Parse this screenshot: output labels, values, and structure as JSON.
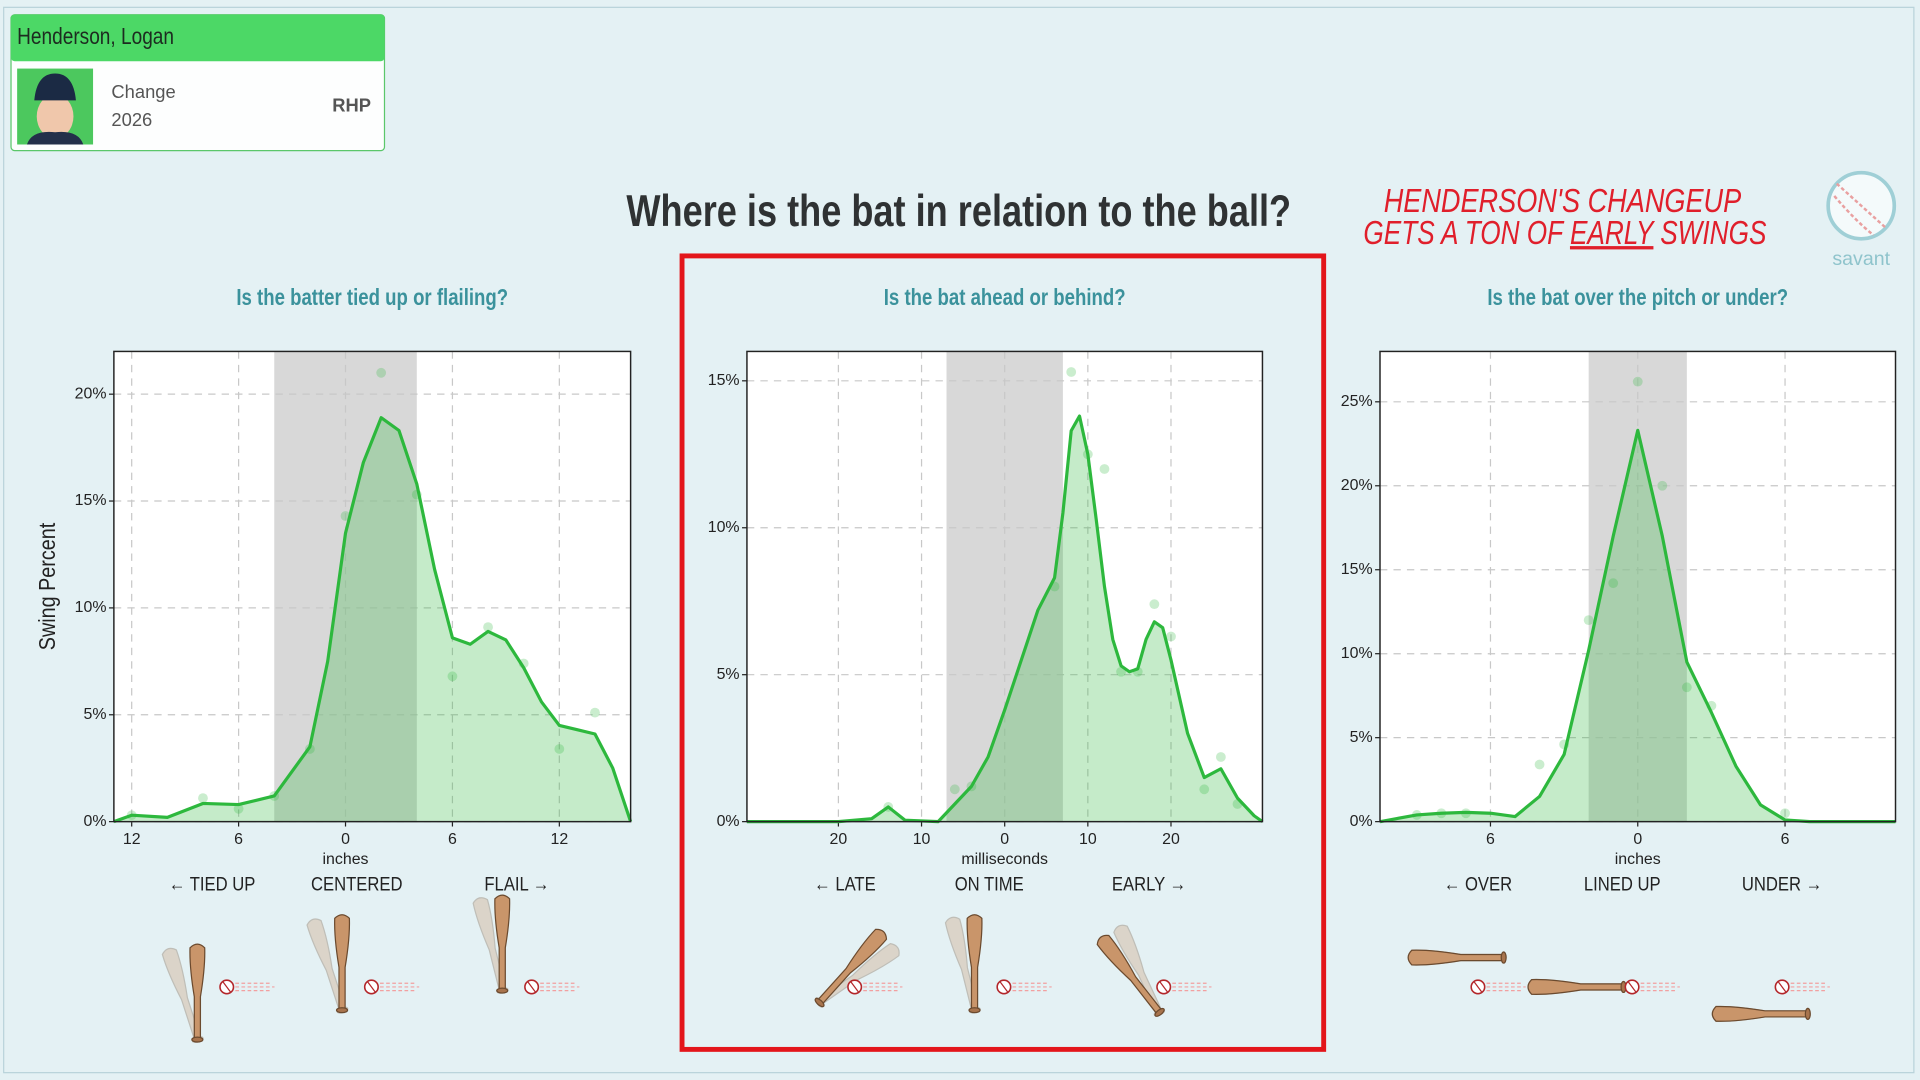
{
  "player": {
    "name": "Henderson, Logan",
    "pitch": "Change",
    "season": "2026",
    "throws": "RHP"
  },
  "headline": "Where is the bat in relation to the ball?",
  "annotation": {
    "line1": "HENDERSON'S CHANGEUP",
    "line2": [
      "GETS A TON OF",
      "EARLY",
      "SWINGS"
    ]
  },
  "logo": "savant",
  "chart_data": [
    {
      "type": "area",
      "title": "Is the batter tied up or flailing?",
      "xlabel": "inches",
      "ylabel": "Swing Percent",
      "x": [
        -13,
        -12,
        -10,
        -8,
        -6,
        -4,
        -2,
        -1,
        0,
        1,
        2,
        3,
        4,
        5,
        6,
        7,
        8,
        9,
        10,
        11,
        12,
        13,
        14,
        15,
        16
      ],
      "values": [
        0,
        0.3,
        0.2,
        0.85,
        0.8,
        1.2,
        3.5,
        7.5,
        13.5,
        16.8,
        18.9,
        18.3,
        15.8,
        11.8,
        8.6,
        8.3,
        8.9,
        8.5,
        7.2,
        5.6,
        4.5,
        4.3,
        4.1,
        2.5,
        0
      ],
      "points": {
        "x": [
          -12,
          -8,
          -6,
          -4,
          -2,
          0,
          2,
          4,
          6,
          8,
          10,
          12,
          14
        ],
        "y": [
          0.3,
          1.1,
          0.6,
          1.2,
          3.4,
          14.3,
          21,
          15.3,
          6.8,
          9.1,
          7.4,
          3.4,
          5.1
        ]
      },
      "color": "#2db83d",
      "highlight": [
        -4,
        4
      ],
      "grid": true,
      "xlim": [
        -13,
        16
      ],
      "ylim": [
        0,
        22
      ],
      "xticks": [
        {
          "value": -12,
          "label": "12"
        },
        {
          "value": -6,
          "label": "6"
        },
        0,
        6,
        12
      ],
      "yticks": [
        {
          "value": 0,
          "label": "0%"
        },
        {
          "value": 5,
          "label": "5%"
        },
        {
          "value": 10,
          "label": "10%"
        },
        {
          "value": 15,
          "label": "15%"
        },
        {
          "value": 20,
          "label": "20%"
        }
      ],
      "zone_labels": [
        "← TIED UP",
        "CENTERED",
        "FLAIL →"
      ]
    },
    {
      "type": "area",
      "title": "Is the bat ahead or behind?",
      "xlabel": "milliseconds",
      "x": [
        -31,
        -20,
        -16,
        -14,
        -12,
        -8,
        -6,
        -4,
        -2,
        0,
        2,
        4,
        6,
        7,
        8,
        9,
        10,
        11,
        12,
        13,
        14,
        15,
        16,
        17,
        18,
        19,
        20,
        22,
        24,
        26,
        28,
        30,
        31
      ],
      "values": [
        0,
        0,
        0.1,
        0.5,
        0.05,
        0,
        0.6,
        1.2,
        2.2,
        3.8,
        5.5,
        7.2,
        8.3,
        10.5,
        13.3,
        13.8,
        12.5,
        10.3,
        8.0,
        6.2,
        5.3,
        5.1,
        5.2,
        6.2,
        6.8,
        6.6,
        5.5,
        3.0,
        1.5,
        1.8,
        0.8,
        0.2,
        0
      ],
      "points": {
        "x": [
          -14,
          -6,
          -4,
          6,
          8,
          10,
          12,
          14,
          16,
          18,
          20,
          24,
          26,
          28
        ],
        "y": [
          0.5,
          1.1,
          1.2,
          8.0,
          15.3,
          12.5,
          12.0,
          5.1,
          5.1,
          7.4,
          6.3,
          1.1,
          2.2,
          0.6
        ]
      },
      "color": "#2db83d",
      "highlight": [
        -7,
        7
      ],
      "grid": true,
      "xlim": [
        -31,
        31
      ],
      "ylim": [
        0,
        16
      ],
      "xticks": [
        {
          "value": -20,
          "label": "20"
        },
        {
          "value": -10,
          "label": "10"
        },
        0,
        10,
        20
      ],
      "yticks": [
        {
          "value": 0,
          "label": "0%"
        },
        {
          "value": 5,
          "label": "5%"
        },
        {
          "value": 10,
          "label": "10%"
        },
        {
          "value": 15,
          "label": "15%"
        }
      ],
      "zone_labels": [
        "← LATE",
        "ON TIME",
        "EARLY →"
      ]
    },
    {
      "type": "area",
      "title": "Is the bat over the pitch or under?",
      "xlabel": "inches",
      "x": [
        -10.5,
        -9,
        -8,
        -7,
        -6,
        -5,
        -4,
        -3,
        -2,
        -1,
        0,
        1,
        2,
        3,
        4,
        5,
        6,
        7,
        10.5
      ],
      "values": [
        0,
        0.4,
        0.5,
        0.55,
        0.5,
        0.3,
        1.5,
        4.0,
        10.2,
        17.0,
        23.3,
        17.0,
        9.5,
        6.5,
        3.3,
        1.0,
        0.1,
        0,
        0
      ],
      "points": {
        "x": [
          -9,
          -8,
          -7,
          -4,
          -3,
          -2,
          -1,
          0,
          1,
          2,
          3,
          6
        ],
        "y": [
          0.4,
          0.5,
          0.5,
          3.4,
          4.6,
          12,
          14.2,
          26.2,
          20,
          8,
          6.9,
          0.5
        ]
      },
      "color": "#2db83d",
      "highlight": [
        -2,
        2
      ],
      "grid": true,
      "xlim": [
        -10.5,
        10.5
      ],
      "ylim": [
        0,
        28
      ],
      "xticks": [
        {
          "value": -6,
          "label": "6"
        },
        0,
        6
      ],
      "yticks": [
        {
          "value": 0,
          "label": "0%"
        },
        {
          "value": 5,
          "label": "5%"
        },
        {
          "value": 10,
          "label": "10%"
        },
        {
          "value": 15,
          "label": "15%"
        },
        {
          "value": 20,
          "label": "20%"
        },
        {
          "value": 25,
          "label": "25%"
        }
      ],
      "zone_labels": [
        "← OVER",
        "LINED UP",
        "UNDER →"
      ]
    }
  ]
}
